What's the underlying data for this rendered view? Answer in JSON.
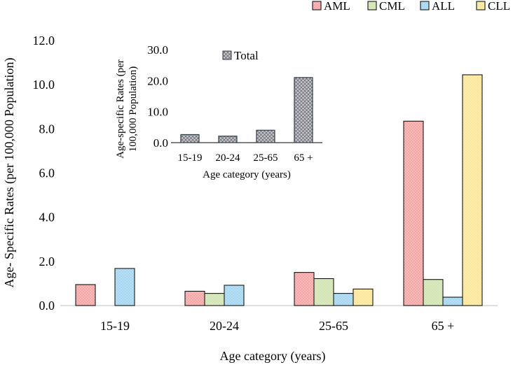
{
  "chart_data": [
    {
      "type": "bar",
      "title": "",
      "xlabel": "Age category (years)",
      "ylabel": "Age- Specific Rates (per 100,000 Population)",
      "categories": [
        "15-19",
        "20-24",
        "25-65",
        "65 +"
      ],
      "ylim": [
        0,
        12
      ],
      "yticks": [
        "0.0",
        "2.0",
        "4.0",
        "6.0",
        "8.0",
        "10.0",
        "12.0"
      ],
      "legend_position": "top-right",
      "series": [
        {
          "name": "AML",
          "color": "#f4a7a7",
          "stroke": "#000000",
          "values": [
            0.95,
            0.65,
            1.5,
            8.35
          ]
        },
        {
          "name": "CML",
          "color": "#d2e4b2",
          "stroke": "#000000",
          "values": [
            0,
            0.55,
            1.22,
            1.18
          ]
        },
        {
          "name": "ALL",
          "color": "#a7d6f0",
          "stroke": "#000000",
          "values": [
            1.68,
            0.92,
            0.55,
            0.38
          ]
        },
        {
          "name": "CLL",
          "color": "#fbe79a",
          "stroke": "#000000",
          "values": [
            0,
            0,
            0.75,
            10.45
          ]
        }
      ]
    },
    {
      "type": "bar",
      "title": "",
      "xlabel": "Age category (years)",
      "ylabel_line1": "Age-specific Rates (per",
      "ylabel_line2": "100,000 Population)",
      "categories": [
        "15-19",
        "20-24",
        "25-65",
        "65 +"
      ],
      "ylim": [
        0,
        30
      ],
      "yticks": [
        "0.0",
        "10.0",
        "20.0",
        "30.0"
      ],
      "legend_position": "top-left",
      "series": [
        {
          "name": "Total",
          "color": "#b8b8c0",
          "stroke": "#333c4a",
          "values": [
            2.6,
            2.1,
            4.0,
            21.0
          ]
        }
      ]
    }
  ]
}
